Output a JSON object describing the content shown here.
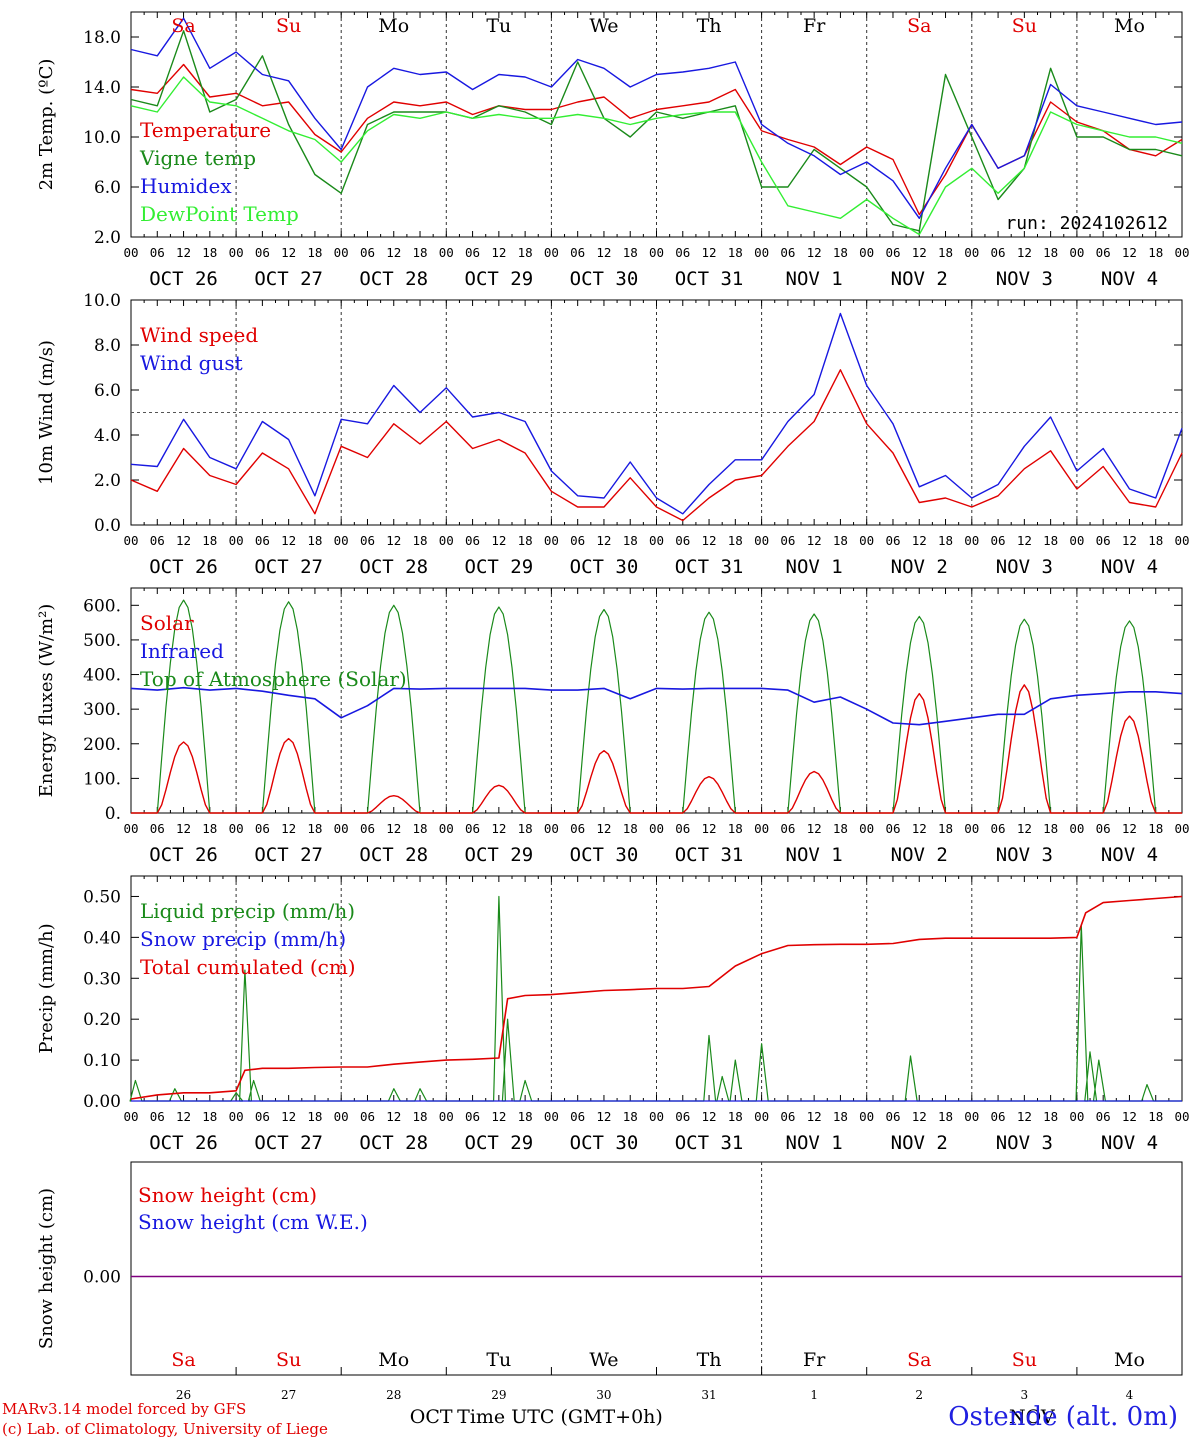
{
  "run_label": "run: 2024102612",
  "time_axis_label": "Time UTC (GMT+0h)",
  "month_labels": [
    "OCT",
    "NOV"
  ],
  "station_label": "Ostende (alt. 0m)",
  "credit_lines": [
    "MARv3.14 model forced by GFS",
    "(c) Lab. of Climatology, University of Liege"
  ],
  "hour_ticks": [
    "00",
    "06",
    "12",
    "18"
  ],
  "date_labels": [
    "OCT 26",
    "OCT 27",
    "OCT 28",
    "OCT 29",
    "OCT 30",
    "OCT 31",
    "NOV  1",
    "NOV  2",
    "NOV  3",
    "NOV  4"
  ],
  "days": [
    {
      "name": "Sa",
      "weekend": true,
      "num": "26"
    },
    {
      "name": "Su",
      "weekend": true,
      "num": "27"
    },
    {
      "name": "Mo",
      "weekend": false,
      "num": "28"
    },
    {
      "name": "Tu",
      "weekend": false,
      "num": "29"
    },
    {
      "name": "We",
      "weekend": false,
      "num": "30"
    },
    {
      "name": "Th",
      "weekend": false,
      "num": "31"
    },
    {
      "name": "Fr",
      "weekend": false,
      "num": "1"
    },
    {
      "name": "Sa",
      "weekend": true,
      "num": "2"
    },
    {
      "name": "Su",
      "weekend": true,
      "num": "3"
    },
    {
      "name": "Mo",
      "weekend": false,
      "num": "4"
    }
  ],
  "colors": {
    "red": "#e00000",
    "green": "#1a8a1a",
    "blue": "#1818e0",
    "lightgreen": "#33ee33",
    "purple": "#800080",
    "axis": "#000000"
  },
  "chart_data": [
    {
      "type": "line",
      "ylabel": "2m Temp. (ºC)",
      "ylim": [
        2,
        20
      ],
      "yticks": [
        "2.0",
        "6.0",
        "10.0",
        "14.0",
        "18.0"
      ],
      "ytick_values": [
        2,
        6,
        10,
        14,
        18
      ],
      "x_unit": "hours since Oct 26 00 UTC",
      "series": [
        {
          "name": "Temperature",
          "color": "#e00000",
          "x": [
            0,
            6,
            12,
            18,
            24,
            30,
            36,
            42,
            48,
            54,
            60,
            66,
            72,
            78,
            84,
            90,
            96,
            102,
            108,
            114,
            120,
            126,
            132,
            138,
            144,
            150,
            156,
            162,
            168,
            174,
            180,
            186,
            192,
            198,
            204,
            210,
            216,
            222,
            228,
            234,
            240
          ],
          "y": [
            13.8,
            13.5,
            15.8,
            13.2,
            13.5,
            12.5,
            12.8,
            10.2,
            8.8,
            11.5,
            12.8,
            12.5,
            12.8,
            11.8,
            12.5,
            12.2,
            12.2,
            12.8,
            13.2,
            11.5,
            12.2,
            12.5,
            12.8,
            13.8,
            10.5,
            9.8,
            9.2,
            7.8,
            9.2,
            8.2,
            3.8,
            7.0,
            11.0,
            7.5,
            8.5,
            12.8,
            11.2,
            10.5,
            9.0,
            8.5,
            9.8
          ]
        },
        {
          "name": "Vigne temp",
          "color": "#1a8a1a",
          "x": [
            0,
            6,
            12,
            18,
            24,
            30,
            36,
            42,
            48,
            54,
            60,
            66,
            72,
            78,
            84,
            90,
            96,
            102,
            108,
            114,
            120,
            126,
            132,
            138,
            144,
            150,
            156,
            162,
            168,
            174,
            180,
            186,
            192,
            198,
            204,
            210,
            216,
            222,
            228,
            234,
            240
          ],
          "y": [
            13.0,
            12.5,
            18.5,
            12.0,
            13.0,
            16.5,
            11.0,
            7.0,
            5.5,
            11.0,
            12.0,
            12.0,
            12.0,
            11.5,
            12.5,
            12.0,
            11.0,
            16.0,
            11.5,
            10.0,
            12.0,
            11.5,
            12.0,
            12.5,
            6.0,
            6.0,
            9.0,
            7.5,
            6.0,
            3.0,
            2.5,
            15.0,
            10.0,
            5.0,
            7.5,
            15.5,
            10.0,
            10.0,
            9.0,
            9.0,
            8.5
          ]
        },
        {
          "name": "Humidex",
          "color": "#1818e0",
          "x": [
            0,
            6,
            12,
            18,
            24,
            30,
            36,
            42,
            48,
            54,
            60,
            66,
            72,
            78,
            84,
            90,
            96,
            102,
            108,
            114,
            120,
            126,
            132,
            138,
            144,
            150,
            156,
            162,
            168,
            174,
            180,
            186,
            192,
            198,
            204,
            210,
            216,
            222,
            228,
            234,
            240
          ],
          "y": [
            17.0,
            16.5,
            19.5,
            15.5,
            16.8,
            15.0,
            14.5,
            11.5,
            9.0,
            14.0,
            15.5,
            15.0,
            15.2,
            13.8,
            15.0,
            14.8,
            14.0,
            16.2,
            15.5,
            14.0,
            15.0,
            15.2,
            15.5,
            16.0,
            11.0,
            9.5,
            8.5,
            7.0,
            8.0,
            6.5,
            3.5,
            7.5,
            11.0,
            7.5,
            8.5,
            14.2,
            12.5,
            12.0,
            11.5,
            11.0,
            11.2
          ]
        },
        {
          "name": "DewPoint Temp",
          "color": "#33ee33",
          "x": [
            0,
            6,
            12,
            18,
            24,
            30,
            36,
            42,
            48,
            54,
            60,
            66,
            72,
            78,
            84,
            90,
            96,
            102,
            108,
            114,
            120,
            126,
            132,
            138,
            144,
            150,
            156,
            162,
            168,
            174,
            180,
            186,
            192,
            198,
            204,
            210,
            216,
            222,
            228,
            234,
            240
          ],
          "y": [
            12.5,
            12.0,
            14.8,
            12.8,
            12.5,
            11.5,
            10.5,
            9.8,
            8.0,
            10.5,
            11.8,
            11.5,
            12.0,
            11.5,
            11.8,
            11.5,
            11.5,
            11.8,
            11.5,
            11.0,
            11.5,
            11.8,
            12.0,
            12.0,
            8.0,
            4.5,
            4.0,
            3.5,
            5.0,
            3.5,
            2.2,
            6.0,
            7.5,
            5.5,
            7.5,
            12.0,
            11.0,
            10.5,
            10.0,
            10.0,
            9.5
          ]
        }
      ]
    },
    {
      "type": "line",
      "ylabel": "10m Wind (m/s)",
      "ylim": [
        0,
        10
      ],
      "yticks": [
        "0.0",
        "2.0",
        "4.0",
        "6.0",
        "8.0",
        "10.0"
      ],
      "ytick_values": [
        0,
        2,
        4,
        6,
        8,
        10
      ],
      "reference_line": 5,
      "series": [
        {
          "name": "Wind speed",
          "color": "#e00000",
          "x": [
            0,
            6,
            12,
            18,
            24,
            30,
            36,
            42,
            48,
            54,
            60,
            66,
            72,
            78,
            84,
            90,
            96,
            102,
            108,
            114,
            120,
            126,
            132,
            138,
            144,
            150,
            156,
            162,
            168,
            174,
            180,
            186,
            192,
            198,
            204,
            210,
            216,
            222,
            228,
            234,
            240
          ],
          "y": [
            2.0,
            1.5,
            3.4,
            2.2,
            1.8,
            3.2,
            2.5,
            0.5,
            3.5,
            3.0,
            4.5,
            3.6,
            4.6,
            3.4,
            3.8,
            3.2,
            1.5,
            0.8,
            0.8,
            2.1,
            0.8,
            0.2,
            1.2,
            2.0,
            2.2,
            3.5,
            4.6,
            6.9,
            4.5,
            3.2,
            1.0,
            1.2,
            0.8,
            1.3,
            2.5,
            3.3,
            1.6,
            2.6,
            1.0,
            0.8,
            3.2
          ]
        },
        {
          "name": "Wind gust",
          "color": "#1818e0",
          "x": [
            0,
            6,
            12,
            18,
            24,
            30,
            36,
            42,
            48,
            54,
            60,
            66,
            72,
            78,
            84,
            90,
            96,
            102,
            108,
            114,
            120,
            126,
            132,
            138,
            144,
            150,
            156,
            162,
            168,
            174,
            180,
            186,
            192,
            198,
            204,
            210,
            216,
            222,
            228,
            234,
            240
          ],
          "y": [
            2.7,
            2.6,
            4.7,
            3.0,
            2.5,
            4.6,
            3.8,
            1.3,
            4.7,
            4.5,
            6.2,
            5.0,
            6.1,
            4.8,
            5.0,
            4.6,
            2.4,
            1.3,
            1.2,
            2.8,
            1.2,
            0.5,
            1.8,
            2.9,
            2.9,
            4.6,
            5.8,
            9.4,
            6.2,
            4.5,
            1.7,
            2.2,
            1.2,
            1.8,
            3.5,
            4.8,
            2.4,
            3.4,
            1.6,
            1.2,
            4.3
          ]
        }
      ]
    },
    {
      "type": "line",
      "ylabel": "Energy fluxes (W/m²)",
      "ylim": [
        0,
        650
      ],
      "yticks": [
        "0.",
        "100.",
        "200.",
        "300.",
        "400.",
        "500.",
        "600."
      ],
      "ytick_values": [
        0,
        100,
        200,
        300,
        400,
        500,
        600
      ],
      "series": [
        {
          "name": "Solar",
          "color": "#e00000",
          "daily_peak_hour": 12,
          "daily_peak": [
            205,
            215,
            50,
            80,
            180,
            105,
            120,
            345,
            370,
            280
          ]
        },
        {
          "name": "Infrared",
          "color": "#1818e0",
          "x": [
            0,
            6,
            12,
            18,
            24,
            30,
            36,
            42,
            48,
            54,
            60,
            66,
            72,
            78,
            84,
            90,
            96,
            102,
            108,
            114,
            120,
            126,
            132,
            138,
            144,
            150,
            156,
            162,
            168,
            174,
            180,
            186,
            192,
            198,
            204,
            210,
            216,
            222,
            228,
            234,
            240
          ],
          "y": [
            360,
            355,
            362,
            355,
            360,
            352,
            340,
            330,
            275,
            310,
            360,
            358,
            360,
            360,
            360,
            360,
            355,
            355,
            360,
            330,
            360,
            358,
            360,
            360,
            360,
            355,
            320,
            335,
            300,
            260,
            255,
            265,
            275,
            285,
            285,
            330,
            340,
            345,
            350,
            350,
            345
          ]
        },
        {
          "name": "Top of Atmosphere (Solar)",
          "color": "#1a8a1a",
          "daily_peak_hour": 12,
          "daily_peak": [
            615,
            610,
            600,
            595,
            588,
            580,
            575,
            568,
            560,
            555
          ]
        }
      ]
    },
    {
      "type": "line",
      "ylabel": "Precip (mm/h)",
      "ylim": [
        0,
        0.55
      ],
      "yticks": [
        "0.00",
        "0.10",
        "0.20",
        "0.30",
        "0.40",
        "0.50"
      ],
      "ytick_values": [
        0,
        0.1,
        0.2,
        0.3,
        0.4,
        0.5
      ],
      "series": [
        {
          "name": "Liquid precip (mm/h)",
          "color": "#1a8a1a",
          "spikes": [
            [
              1,
              0.05
            ],
            [
              10,
              0.03
            ],
            [
              24,
              0.02
            ],
            [
              26,
              0.32
            ],
            [
              28,
              0.05
            ],
            [
              60,
              0.03
            ],
            [
              66,
              0.03
            ],
            [
              84,
              0.5
            ],
            [
              86,
              0.2
            ],
            [
              90,
              0.05
            ],
            [
              132,
              0.16
            ],
            [
              135,
              0.06
            ],
            [
              138,
              0.1
            ],
            [
              144,
              0.14
            ],
            [
              178,
              0.11
            ],
            [
              217,
              0.43
            ],
            [
              219,
              0.12
            ],
            [
              221,
              0.1
            ],
            [
              232,
              0.04
            ]
          ]
        },
        {
          "name": "Snow precip (mm/h)",
          "color": "#1818e0",
          "x": [
            0,
            240
          ],
          "y": [
            0,
            0
          ]
        },
        {
          "name": "Total cumulated (cm)",
          "color": "#e00000",
          "x": [
            0,
            6,
            12,
            18,
            24,
            26,
            30,
            36,
            42,
            48,
            54,
            60,
            66,
            72,
            78,
            84,
            86,
            90,
            96,
            102,
            108,
            114,
            120,
            126,
            132,
            138,
            144,
            150,
            156,
            162,
            168,
            174,
            180,
            186,
            192,
            198,
            204,
            210,
            216,
            218,
            222,
            228,
            234,
            240
          ],
          "y": [
            0.005,
            0.015,
            0.02,
            0.02,
            0.025,
            0.075,
            0.08,
            0.08,
            0.082,
            0.083,
            0.083,
            0.09,
            0.095,
            0.1,
            0.102,
            0.105,
            0.25,
            0.258,
            0.26,
            0.265,
            0.27,
            0.272,
            0.275,
            0.275,
            0.28,
            0.33,
            0.36,
            0.38,
            0.382,
            0.383,
            0.383,
            0.385,
            0.395,
            0.398,
            0.398,
            0.398,
            0.398,
            0.398,
            0.4,
            0.46,
            0.485,
            0.49,
            0.495,
            0.5
          ]
        }
      ]
    },
    {
      "type": "line",
      "ylabel": "Snow height (cm)",
      "yticks": [
        "0.00"
      ],
      "ytick_values": [
        0
      ],
      "series": [
        {
          "name": "Snow height (cm)",
          "color": "#e00000",
          "x": [
            0,
            240
          ],
          "y": [
            0,
            0
          ]
        },
        {
          "name": "Snow height (cm W.E.)",
          "color": "#1818e0",
          "x": [
            0,
            240
          ],
          "y": [
            0,
            0
          ]
        }
      ]
    }
  ]
}
